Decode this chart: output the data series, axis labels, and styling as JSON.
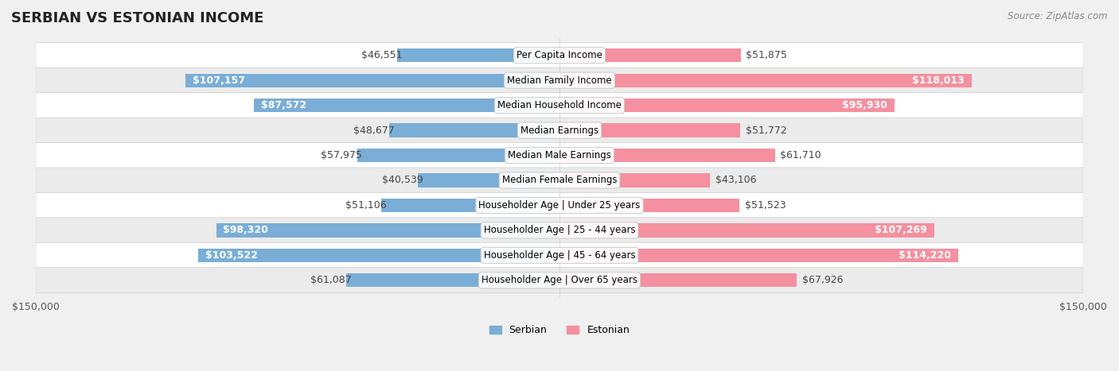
{
  "title": "SERBIAN VS ESTONIAN INCOME",
  "source": "Source: ZipAtlas.com",
  "categories": [
    "Per Capita Income",
    "Median Family Income",
    "Median Household Income",
    "Median Earnings",
    "Median Male Earnings",
    "Median Female Earnings",
    "Householder Age | Under 25 years",
    "Householder Age | 25 - 44 years",
    "Householder Age | 45 - 64 years",
    "Householder Age | Over 65 years"
  ],
  "serbian_values": [
    46551,
    107157,
    87572,
    48677,
    57975,
    40539,
    51106,
    98320,
    103522,
    61087
  ],
  "estonian_values": [
    51875,
    118013,
    95930,
    51772,
    61710,
    43106,
    51523,
    107269,
    114220,
    67926
  ],
  "serbian_labels": [
    "$46,551",
    "$107,157",
    "$87,572",
    "$48,677",
    "$57,975",
    "$40,539",
    "$51,106",
    "$98,320",
    "$103,522",
    "$61,087"
  ],
  "estonian_labels": [
    "$51,875",
    "$118,013",
    "$95,930",
    "$51,772",
    "$61,710",
    "$43,106",
    "$51,523",
    "$107,269",
    "$114,220",
    "$67,926"
  ],
  "serbian_color": "#7aaed6",
  "estonian_color": "#f4909f",
  "serbian_label_color_threshold": 80000,
  "estonian_label_color_threshold": 80000,
  "max_value": 150000,
  "bar_height": 0.55,
  "background_color": "#f0f0f0",
  "row_bg_color": "#ffffff",
  "row_alt_bg_color": "#f5f5f5",
  "label_font_size": 9,
  "title_font_size": 13,
  "axis_label": "$150,000"
}
